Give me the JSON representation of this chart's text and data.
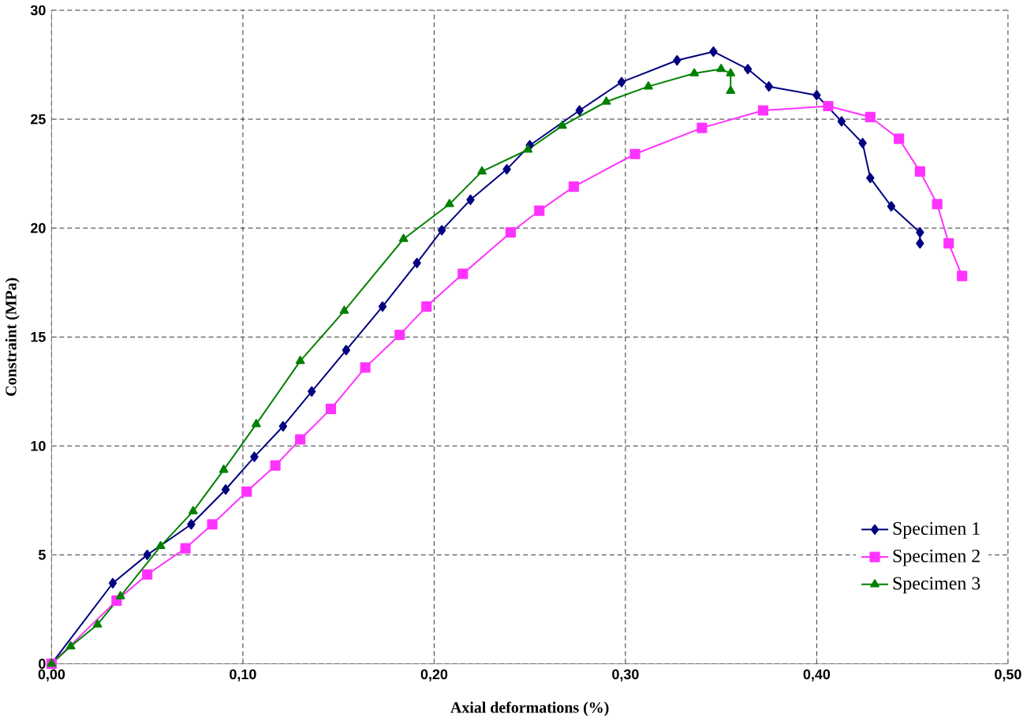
{
  "chart_data": {
    "type": "line",
    "xlabel": "Axial deformations (%)",
    "ylabel": "Constraint (MPa)",
    "xlim": [
      0,
      0.5
    ],
    "ylim": [
      0,
      30
    ],
    "xticks": [
      {
        "value": 0,
        "label": "0,00"
      },
      {
        "value": 0.1,
        "label": "0,10"
      },
      {
        "value": 0.2,
        "label": "0,20"
      },
      {
        "value": 0.3,
        "label": "0,30"
      },
      {
        "value": 0.4,
        "label": "0,40"
      },
      {
        "value": 0.5,
        "label": "0,50"
      }
    ],
    "yticks": [
      0,
      5,
      10,
      15,
      20,
      25,
      30
    ],
    "grid": true,
    "legend": "bottom right",
    "line_style": "solid",
    "series": [
      {
        "name": "Specimen 1",
        "color": "#000080",
        "marker": "diamond",
        "x": [
          0,
          0.032,
          0.05,
          0.073,
          0.091,
          0.106,
          0.121,
          0.136,
          0.154,
          0.173,
          0.191,
          0.204,
          0.219,
          0.238,
          0.25,
          0.276,
          0.298,
          0.327,
          0.346,
          0.364,
          0.375,
          0.4,
          0.413,
          0.424,
          0.428,
          0.439,
          0.454,
          0.454
        ],
        "values": [
          0,
          3.7,
          5.0,
          6.4,
          8.0,
          9.5,
          10.9,
          12.5,
          14.4,
          16.4,
          18.4,
          19.9,
          21.3,
          22.7,
          23.8,
          25.4,
          26.7,
          27.7,
          28.1,
          27.3,
          26.5,
          26.1,
          24.9,
          23.9,
          22.3,
          21.0,
          19.8,
          19.3
        ]
      },
      {
        "name": "Specimen 2",
        "color": "#ff33ff",
        "marker": "square",
        "x": [
          0,
          0.034,
          0.05,
          0.07,
          0.084,
          0.102,
          0.117,
          0.13,
          0.146,
          0.164,
          0.182,
          0.196,
          0.215,
          0.24,
          0.255,
          0.273,
          0.305,
          0.34,
          0.372,
          0.406,
          0.428,
          0.443,
          0.454,
          0.463,
          0.469,
          0.476
        ],
        "values": [
          0,
          2.9,
          4.1,
          5.3,
          6.4,
          7.9,
          9.1,
          10.3,
          11.7,
          13.6,
          15.1,
          16.4,
          17.9,
          19.8,
          20.8,
          21.9,
          23.4,
          24.6,
          25.4,
          25.6,
          25.1,
          24.1,
          22.6,
          21.1,
          19.3,
          17.8
        ]
      },
      {
        "name": "Specimen 3",
        "color": "#008000",
        "marker": "triangle",
        "x": [
          0,
          0.01,
          0.024,
          0.036,
          0.057,
          0.074,
          0.09,
          0.107,
          0.13,
          0.153,
          0.184,
          0.208,
          0.225,
          0.249,
          0.267,
          0.29,
          0.312,
          0.336,
          0.35,
          0.355,
          0.355
        ],
        "values": [
          0,
          0.8,
          1.8,
          3.1,
          5.4,
          7.0,
          8.9,
          11.0,
          13.9,
          16.2,
          19.5,
          21.1,
          22.6,
          23.6,
          24.7,
          25.8,
          26.5,
          27.1,
          27.3,
          27.1,
          26.3
        ]
      }
    ]
  }
}
